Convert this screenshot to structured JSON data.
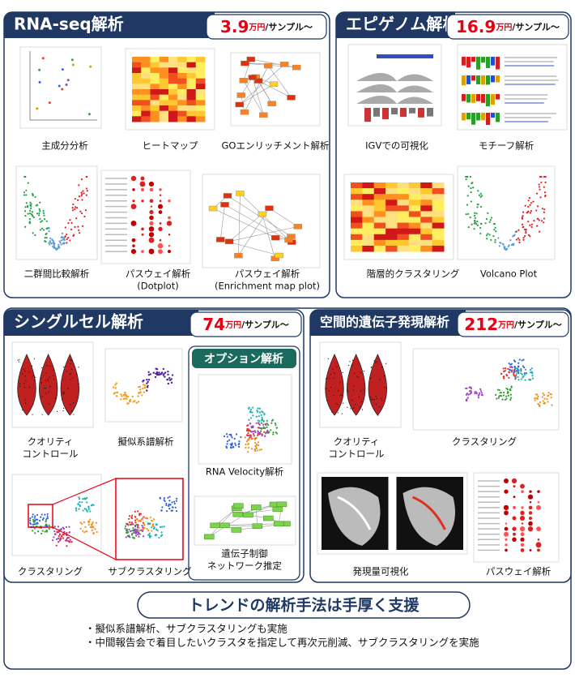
{
  "panels": [
    {
      "title": "RNA-seq解析",
      "price": "3.9",
      "unit": "万円",
      "per": "/サンプル〜",
      "items": [
        {
          "caption": [
            "主成分分析"
          ]
        },
        {
          "caption": [
            "ヒートマップ"
          ]
        },
        {
          "caption": [
            "GOエンリッチメント解析"
          ]
        },
        {
          "caption": [
            "二群間比較解析"
          ]
        },
        {
          "caption": [
            "パスウェイ解析",
            "(Dotplot)"
          ]
        },
        {
          "caption": [
            "パスウェイ解析",
            "(Enrichment map plot)"
          ]
        }
      ]
    },
    {
      "title": "エピゲノム解析",
      "price": "16.9",
      "unit": "万円",
      "per": "/サンプル〜",
      "items": [
        {
          "caption": [
            "IGVでの可視化"
          ]
        },
        {
          "caption": [
            "モチーフ解析"
          ]
        },
        {
          "caption": [
            "階層的クラスタリング"
          ]
        },
        {
          "caption": [
            "Volcano Plot"
          ]
        }
      ]
    },
    {
      "title": "シングルセル解析",
      "price": "74",
      "unit": "万円",
      "per": "/サンプル〜",
      "items": [
        {
          "caption": [
            "クオリティ",
            "コントロール"
          ]
        },
        {
          "caption": [
            "擬似系譜解析"
          ]
        },
        {
          "caption": [
            "クラスタリング"
          ]
        },
        {
          "caption": [
            "サブクラスタリング"
          ]
        }
      ]
    },
    {
      "title": "空間的遺伝子発現解析",
      "price": "212",
      "unit": "万円",
      "per": "/サンプル〜",
      "items": [
        {
          "caption": [
            "クオリティ",
            "コントロール"
          ]
        },
        {
          "caption": [
            "クラスタリング"
          ]
        },
        {
          "caption": [
            "発現量可視化"
          ]
        },
        {
          "caption": [
            "パスウェイ解析"
          ]
        }
      ]
    }
  ],
  "option": {
    "title": "オプション解析",
    "items": [
      {
        "caption": [
          "RNA Velocity解析"
        ]
      },
      {
        "caption": [
          "遺伝子制御",
          "ネットワーク推定"
        ]
      }
    ]
  },
  "banner": "トレンドの解析手法は手厚く支援",
  "bullets": [
    "・擬似系譜解析、サブクラスタリングも実施",
    "・中間報告会で着目したいクラスタを指定して再次元削減、サブクラスタリングを実施"
  ]
}
